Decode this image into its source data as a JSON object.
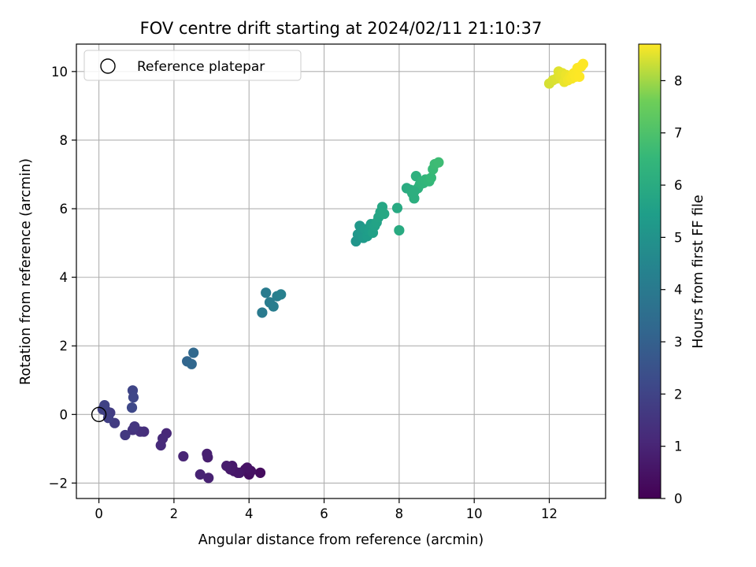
{
  "chart_data": {
    "type": "scatter",
    "title": "FOV centre drift starting at 2024/02/11 21:10:37",
    "xlabel": "Angular distance from reference (arcmin)",
    "ylabel": "Rotation from reference (arcmin)",
    "xlim": [
      -0.6,
      13.5
    ],
    "ylim": [
      -2.45,
      10.8
    ],
    "xticks": [
      0,
      2,
      4,
      6,
      8,
      10,
      12
    ],
    "yticks": [
      -2,
      0,
      2,
      4,
      6,
      8,
      10
    ],
    "grid": true,
    "legend": {
      "position": "top-left",
      "entries": [
        "Reference platepar"
      ]
    },
    "reference_point": {
      "x": 0,
      "y": 0,
      "label": "Reference platepar"
    },
    "colorbar": {
      "label": "Hours from first FF file",
      "colormap": "viridis",
      "range": [
        0,
        8.7
      ],
      "ticks": [
        0,
        1,
        2,
        3,
        4,
        5,
        6,
        7,
        8
      ]
    },
    "series": [
      {
        "x": [
          4.3,
          4.0,
          3.9,
          4.05,
          3.95,
          3.75,
          3.6,
          3.7,
          3.55,
          3.5,
          3.4,
          2.9,
          2.88,
          2.92,
          2.7,
          2.25,
          1.8,
          1.7,
          1.65,
          1.2,
          1.1,
          0.9,
          0.95,
          0.7,
          0.42,
          0.3,
          0.2,
          0.25,
          0.1,
          0.15,
          0.9,
          0.92,
          0.88,
          2.35,
          2.47,
          2.52,
          4.35,
          4.45,
          4.55,
          4.65,
          4.75,
          4.85,
          6.85,
          6.9,
          6.95,
          7.0,
          7.05,
          7.1,
          7.15,
          7.2,
          7.25,
          7.3,
          7.35,
          7.4,
          7.45,
          7.5,
          7.55,
          7.6,
          7.95,
          8.0,
          8.2,
          8.3,
          8.35,
          8.4,
          8.45,
          8.5,
          8.55,
          8.6,
          8.65,
          8.7,
          8.8,
          8.85,
          8.9,
          8.95,
          9.05,
          8.4,
          12.0,
          12.1,
          12.2,
          12.25,
          12.3,
          12.35,
          12.4,
          12.45,
          12.5,
          12.55,
          12.6,
          12.65,
          12.7,
          12.75,
          12.8,
          12.85,
          12.9
        ],
        "y": [
          -1.7,
          -1.75,
          -1.6,
          -1.65,
          -1.55,
          -1.7,
          -1.65,
          -1.7,
          -1.5,
          -1.6,
          -1.5,
          -1.25,
          -1.15,
          -1.85,
          -1.75,
          -1.22,
          -0.55,
          -0.7,
          -0.9,
          -0.5,
          -0.5,
          -0.45,
          -0.35,
          -0.6,
          -0.25,
          0.05,
          0.1,
          -0.1,
          0.15,
          0.27,
          0.7,
          0.5,
          0.2,
          1.55,
          1.47,
          1.8,
          2.97,
          3.55,
          3.27,
          3.15,
          3.45,
          3.5,
          5.05,
          5.25,
          5.5,
          5.3,
          5.15,
          5.4,
          5.2,
          5.35,
          5.55,
          5.3,
          5.5,
          5.6,
          5.75,
          5.9,
          6.05,
          5.85,
          6.02,
          5.37,
          6.6,
          6.55,
          6.45,
          6.3,
          6.95,
          6.6,
          6.7,
          6.8,
          6.75,
          6.85,
          6.8,
          6.9,
          7.15,
          7.3,
          7.35,
          6.5,
          9.65,
          9.75,
          9.8,
          10.0,
          9.85,
          9.95,
          9.7,
          9.9,
          9.75,
          9.85,
          9.8,
          9.95,
          9.85,
          10.1,
          9.85,
          10.15,
          10.22
        ],
        "hours": [
          0.3,
          0.35,
          0.4,
          0.45,
          0.5,
          0.55,
          0.6,
          0.62,
          0.65,
          0.7,
          0.75,
          0.8,
          0.85,
          0.9,
          0.95,
          1.0,
          1.1,
          1.15,
          1.2,
          1.3,
          1.35,
          1.45,
          1.55,
          1.6,
          1.7,
          1.75,
          1.8,
          1.85,
          1.9,
          1.95,
          2.05,
          2.1,
          2.15,
          3.2,
          3.25,
          3.3,
          4.0,
          4.05,
          4.1,
          4.15,
          4.2,
          4.25,
          5.1,
          5.15,
          5.2,
          5.25,
          5.3,
          5.35,
          5.4,
          5.45,
          5.5,
          5.55,
          5.6,
          5.65,
          5.7,
          5.75,
          5.8,
          5.85,
          5.9,
          5.95,
          6.0,
          6.05,
          6.1,
          6.15,
          6.2,
          6.25,
          6.3,
          6.35,
          6.4,
          6.45,
          6.5,
          6.55,
          6.6,
          6.65,
          6.7,
          6.12,
          8.4,
          8.42,
          8.45,
          8.47,
          8.5,
          8.52,
          8.55,
          8.57,
          8.6,
          8.62,
          8.65,
          8.67,
          8.68,
          8.69,
          8.7,
          8.7,
          8.7
        ]
      }
    ]
  }
}
